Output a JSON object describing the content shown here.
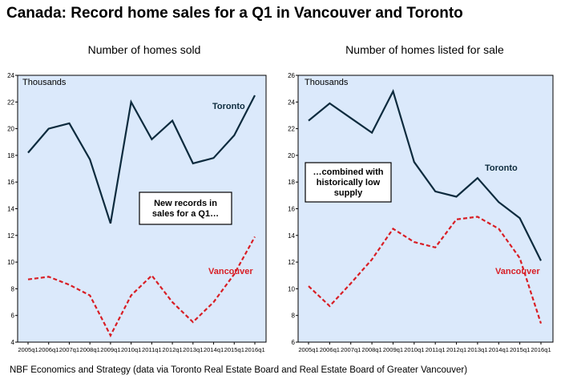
{
  "title": "Canada: Record home sales for a Q1 in Vancouver and Toronto",
  "footer": "NBF Economics and Strategy (data via Toronto Real Estate Board and Real Estate Board of Greater Vancouver)",
  "colors": {
    "plot_bg": "#dbe9fb",
    "toronto": "#0d2b3e",
    "vancouver": "#d81e25",
    "axis": "#000000"
  },
  "chart_data": [
    {
      "type": "line",
      "title": "Number of homes sold",
      "ylabel": "Thousands",
      "ylim": [
        4,
        24
      ],
      "yticks": [
        4,
        6,
        8,
        10,
        12,
        14,
        16,
        18,
        20,
        22,
        24
      ],
      "grid": false,
      "categories": [
        "2005q1",
        "2006q1",
        "2007q1",
        "2008q1",
        "2009q1",
        "2010q1",
        "2011q1",
        "2012q1",
        "2013q1",
        "2014q1",
        "2015q1",
        "2016q1"
      ],
      "series": [
        {
          "name": "Toronto",
          "style": "solid",
          "values": [
            18.2,
            20.0,
            20.4,
            17.7,
            12.9,
            22.0,
            19.2,
            20.6,
            17.4,
            17.8,
            19.5,
            22.5
          ]
        },
        {
          "name": "Vancouver",
          "style": "dashed",
          "values": [
            8.7,
            8.9,
            8.3,
            7.5,
            4.5,
            7.5,
            9.0,
            7.0,
            5.5,
            7.0,
            9.1,
            11.9
          ]
        }
      ],
      "annotation": [
        "New records in",
        "sales for a Q1…"
      ]
    },
    {
      "type": "line",
      "title": "Number of homes listed for sale",
      "ylabel": "Thousands",
      "ylim": [
        6,
        26
      ],
      "yticks": [
        6,
        8,
        10,
        12,
        14,
        16,
        18,
        20,
        22,
        24,
        26
      ],
      "grid": false,
      "categories": [
        "2005q1",
        "2006q1",
        "2007q1",
        "2008q1",
        "2009q1",
        "2010q1",
        "2011q1",
        "2012q1",
        "2013q1",
        "2014q1",
        "2015q1",
        "2016q1"
      ],
      "series": [
        {
          "name": "Toronto",
          "style": "solid",
          "values": [
            22.6,
            23.9,
            22.8,
            21.7,
            24.8,
            19.5,
            17.3,
            16.9,
            18.3,
            16.5,
            15.3,
            12.1
          ]
        },
        {
          "name": "Vancouver",
          "style": "dashed",
          "values": [
            10.2,
            8.7,
            10.4,
            12.2,
            14.5,
            13.5,
            13.1,
            15.2,
            15.4,
            14.5,
            12.3,
            7.4
          ]
        }
      ],
      "annotation": [
        "…combined with",
        "historically low",
        "supply"
      ]
    }
  ]
}
